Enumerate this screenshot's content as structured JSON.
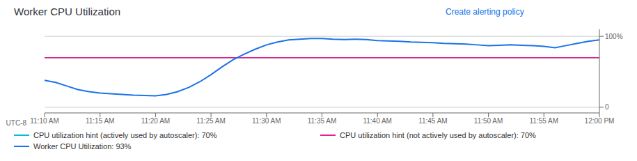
{
  "chart_data": {
    "type": "line",
    "title": "Worker CPU Utilization",
    "xlabel": "UTC-8",
    "annotations": [
      {
        "text": "Create alerting policy",
        "color": "#1a73e8"
      }
    ],
    "x": [
      0,
      1,
      2,
      3,
      4,
      5,
      6,
      7,
      8,
      9,
      10,
      11,
      12,
      13,
      14,
      15,
      16,
      17,
      18,
      19,
      20,
      21,
      22,
      23,
      24,
      25,
      26,
      27,
      28,
      29,
      30,
      31,
      32,
      33,
      34,
      35,
      36,
      37,
      38,
      39,
      40,
      41,
      42,
      43,
      44,
      45,
      46,
      47,
      48,
      49,
      50
    ],
    "series": [
      {
        "name": "Worker CPU Utilization: 93%",
        "color": "#1a73e8",
        "values": [
          0.38,
          0.35,
          0.3,
          0.25,
          0.22,
          0.2,
          0.19,
          0.18,
          0.17,
          0.165,
          0.16,
          0.18,
          0.22,
          0.28,
          0.36,
          0.46,
          0.57,
          0.67,
          0.75,
          0.82,
          0.88,
          0.92,
          0.95,
          0.96,
          0.97,
          0.97,
          0.96,
          0.955,
          0.96,
          0.955,
          0.94,
          0.935,
          0.93,
          0.92,
          0.915,
          0.91,
          0.9,
          0.895,
          0.89,
          0.88,
          0.87,
          0.875,
          0.88,
          0.875,
          0.87,
          0.86,
          0.84,
          0.87,
          0.9,
          0.93,
          0.95
        ]
      }
    ],
    "reference_lines": [
      {
        "name": "CPU utilization hint (actively used by autoscaler):  70%",
        "color": "#00bcd4",
        "value": 0.7
      },
      {
        "name": "CPU utilization hint (not actively used by autoscaler):  70%",
        "color": "#e91e8c",
        "value": 0.7
      }
    ],
    "xlim": [
      0,
      50
    ],
    "xticks": [
      {
        "value": 0,
        "label": "11:10 AM"
      },
      {
        "value": 5,
        "label": "11:15 AM"
      },
      {
        "value": 10,
        "label": "11:20 AM"
      },
      {
        "value": 15,
        "label": "11:25 AM"
      },
      {
        "value": 20,
        "label": "11:30 AM"
      },
      {
        "value": 25,
        "label": "11:35 AM"
      },
      {
        "value": 30,
        "label": "11:40 AM"
      },
      {
        "value": 35,
        "label": "11:45 AM"
      },
      {
        "value": 40,
        "label": "11:50 AM"
      },
      {
        "value": 45,
        "label": "11:55 AM"
      },
      {
        "value": 50,
        "label": "12:00 PM"
      }
    ],
    "ylim": [
      -0.08,
      1.1
    ],
    "yticks": [
      0,
      {
        "value": 1,
        "label": "100%"
      }
    ],
    "grid": true,
    "legend": "lower left"
  }
}
